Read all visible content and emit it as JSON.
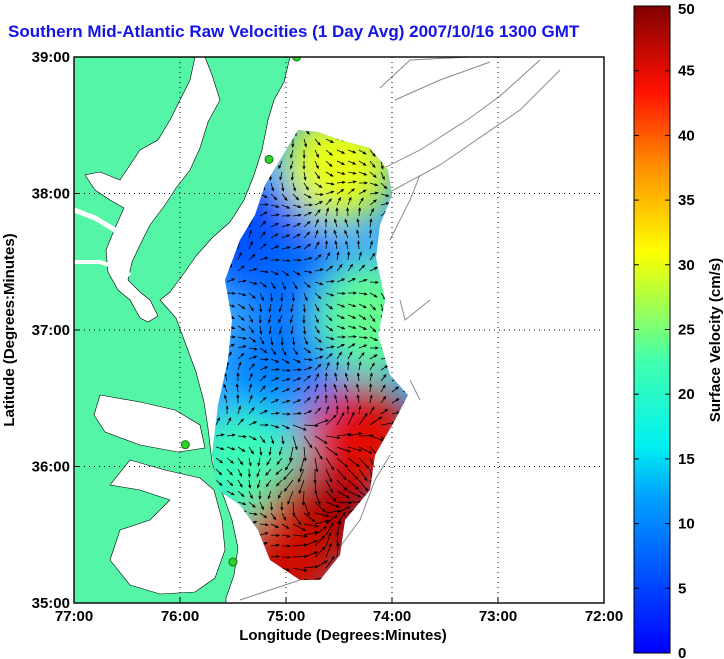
{
  "chart_data": {
    "type": "heatmap",
    "title": "Southern Mid-Atlantic Raw Velocities (1 Day Avg) 2007/10/16 1300 GMT",
    "xlabel": "Longitude (Degrees:Minutes)",
    "ylabel": "Latitude (Degrees:Minutes)",
    "xlim": [
      -77,
      -72
    ],
    "ylim": [
      35,
      39
    ],
    "x_ticks": [
      {
        "value": -77,
        "label": "77:00"
      },
      {
        "value": -76,
        "label": "76:00"
      },
      {
        "value": -75,
        "label": "75:00"
      },
      {
        "value": -74,
        "label": "74:00"
      },
      {
        "value": -73,
        "label": "73:00"
      },
      {
        "value": -72,
        "label": "72:00"
      }
    ],
    "y_ticks": [
      {
        "value": 35,
        "label": "35:00"
      },
      {
        "value": 36,
        "label": "36:00"
      },
      {
        "value": 37,
        "label": "37:00"
      },
      {
        "value": 38,
        "label": "38:00"
      },
      {
        "value": 39,
        "label": "39:00"
      }
    ],
    "grid": true,
    "colorbar": {
      "label": "Surface Velocity (cm/s)",
      "min": 0,
      "max": 50,
      "ticks": [
        0,
        5,
        10,
        15,
        20,
        25,
        30,
        35,
        40,
        45,
        50
      ],
      "colormap": "jet",
      "placement": "right"
    },
    "speed_regions": [
      {
        "lon": -75.3,
        "lat": 37.7,
        "speed": 6
      },
      {
        "lon": -74.8,
        "lat": 37.3,
        "speed": 8
      },
      {
        "lon": -75.0,
        "lat": 36.7,
        "speed": 9
      },
      {
        "lon": -75.2,
        "lat": 36.2,
        "speed": 12
      },
      {
        "lon": -74.2,
        "lat": 37.1,
        "speed": 24
      },
      {
        "lon": -75.4,
        "lat": 36.0,
        "speed": 22
      },
      {
        "lon": -74.5,
        "lat": 38.2,
        "speed": 30
      },
      {
        "lon": -74.3,
        "lat": 36.2,
        "speed": 45
      },
      {
        "lon": -74.7,
        "lat": 35.6,
        "speed": 48
      },
      {
        "lon": -75.0,
        "lat": 35.3,
        "speed": 46
      }
    ]
  },
  "map": {
    "land_color": "#55f5a8",
    "ocean_color": "#ffffff",
    "station_color": "#2ed12e"
  }
}
